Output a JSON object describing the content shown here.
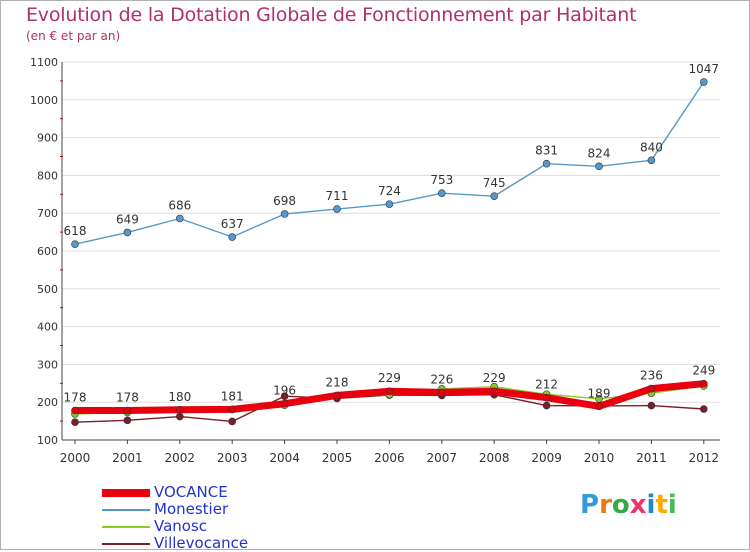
{
  "chart_data": {
    "type": "line",
    "title": "Evolution de la Dotation Globale de Fonctionnement par Habitant",
    "subtitle": "(en € et par an)",
    "x": [
      "2000",
      "2001",
      "2002",
      "2003",
      "2004",
      "2005",
      "2006",
      "2007",
      "2008",
      "2009",
      "2010",
      "2011",
      "2012"
    ],
    "ylim": [
      100,
      1100
    ],
    "yticks": [
      100,
      200,
      300,
      400,
      500,
      600,
      700,
      800,
      900,
      1000,
      1100
    ],
    "series": [
      {
        "name": "Villevocance",
        "color": "#7a1f2a",
        "values": [
          147,
          152,
          162,
          149,
          216,
          210,
          219,
          218,
          220,
          191,
          190,
          191,
          182
        ],
        "show_labels": false
      },
      {
        "name": "Vanosc",
        "color": "#88cc22",
        "values": [
          169,
          173,
          180,
          181,
          192,
          216,
          220,
          235,
          241,
          221,
          209,
          224,
          243
        ],
        "show_labels": false
      },
      {
        "name": "VOCANCE",
        "color": "#e8000e",
        "values": [
          178,
          178,
          180,
          181,
          196,
          218,
          229,
          226,
          229,
          212,
          189,
          236,
          249
        ],
        "show_labels": true
      },
      {
        "name": "Monestier",
        "color": "#5599cc",
        "values": [
          618,
          649,
          686,
          637,
          698,
          711,
          724,
          753,
          745,
          831,
          824,
          840,
          1047
        ],
        "show_labels": true
      }
    ],
    "legend": [
      "VOCANCE",
      "Monestier",
      "Vanosc",
      "Villevocance"
    ],
    "legend_position": "bottom-left"
  },
  "logo": {
    "text": "Proxiti"
  }
}
